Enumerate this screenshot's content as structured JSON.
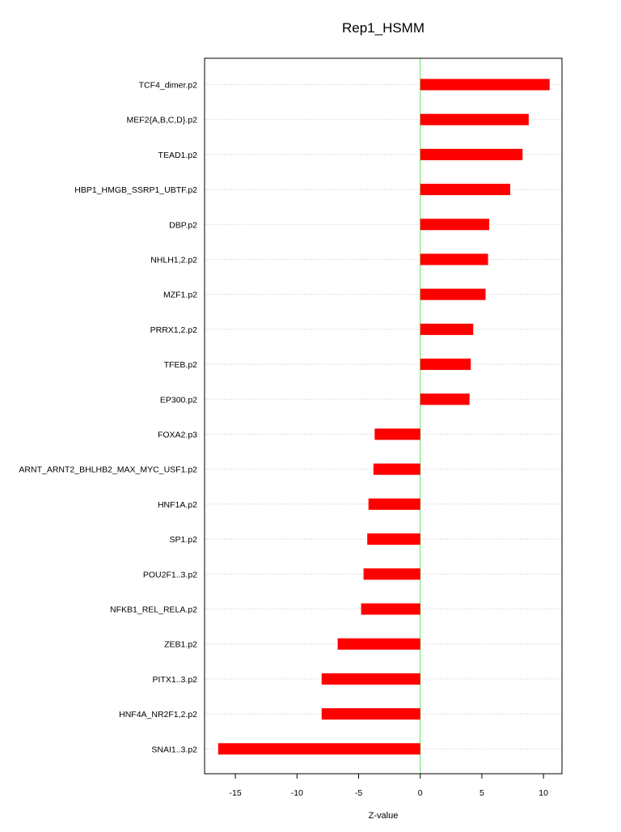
{
  "chart_data": {
    "type": "bar",
    "orientation": "horizontal",
    "title": "Rep1_HSMM",
    "xlabel": "Z-value",
    "ylabel": "",
    "xlim": [
      -17.5,
      11.5
    ],
    "xticks": [
      -15,
      -10,
      -5,
      0,
      5,
      10
    ],
    "grid": "horizontal dotted",
    "colors": {
      "bar": "#ff0000",
      "zero_line": "#66dd66",
      "grid": "#c8c8c8",
      "frame": "#000000"
    },
    "categories": [
      "TCF4_dimer.p2",
      "MEF2{A,B,C,D}.p2",
      "TEAD1.p2",
      "HBP1_HMGB_SSRP1_UBTF.p2",
      "DBP.p2",
      "NHLH1,2.p2",
      "MZF1.p2",
      "PRRX1,2.p2",
      "TFEB.p2",
      "EP300.p2",
      "FOXA2.p3",
      "ARNT_ARNT2_BHLHB2_MAX_MYC_USF1.p2",
      "HNF1A.p2",
      "SP1.p2",
      "POU2F1..3.p2",
      "NFKB1_REL_RELA.p2",
      "ZEB1.p2",
      "PITX1..3.p2",
      "HNF4A_NR2F1,2.p2",
      "SNAI1..3.p2"
    ],
    "values": [
      10.5,
      8.8,
      8.3,
      7.3,
      5.6,
      5.5,
      5.3,
      4.3,
      4.1,
      4.0,
      -3.7,
      -3.8,
      -4.2,
      -4.3,
      -4.6,
      -4.8,
      -6.7,
      -8.0,
      -8.0,
      -16.4
    ]
  }
}
